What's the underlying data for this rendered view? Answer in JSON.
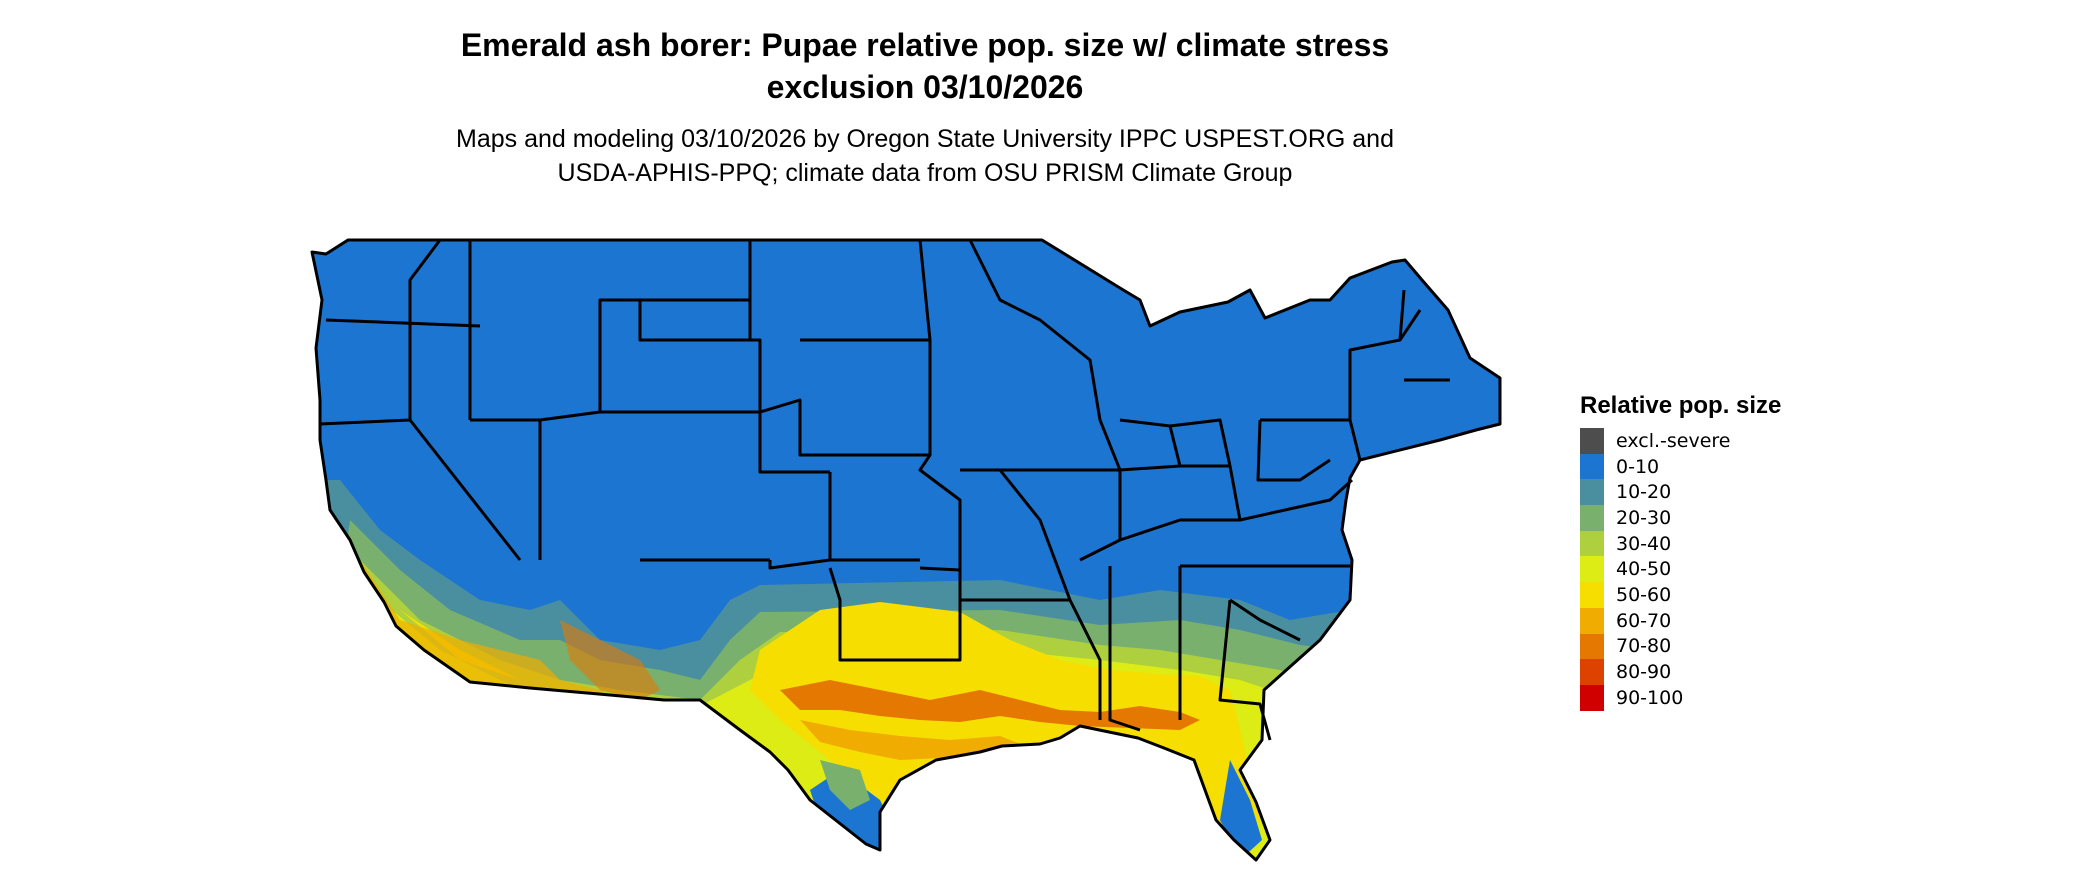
{
  "title_line1": "Emerald ash borer: Pupae relative pop. size w/ climate stress",
  "title_line2": "exclusion 03/10/2026",
  "subtitle_line1": "Maps and modeling 03/10/2026 by Oregon State University IPPC USPEST.ORG and",
  "subtitle_line2": "USDA-APHIS-PPQ; climate data from OSU PRISM Climate Group",
  "legend": {
    "title": "Relative pop. size",
    "items": [
      {
        "label": "excl.-severe",
        "color": "#4d4d4d"
      },
      {
        "label": "0-10",
        "color": "#1c75d0"
      },
      {
        "label": "10-20",
        "color": "#4a8fa0"
      },
      {
        "label": "20-30",
        "color": "#79b06e"
      },
      {
        "label": "30-40",
        "color": "#aed03f"
      },
      {
        "label": "40-50",
        "color": "#dcec14"
      },
      {
        "label": "50-60",
        "color": "#f6de00"
      },
      {
        "label": "60-70",
        "color": "#f0ac00"
      },
      {
        "label": "70-80",
        "color": "#e47800"
      },
      {
        "label": "80-90",
        "color": "#de4200"
      },
      {
        "label": "90-100",
        "color": "#d00000"
      }
    ]
  }
}
